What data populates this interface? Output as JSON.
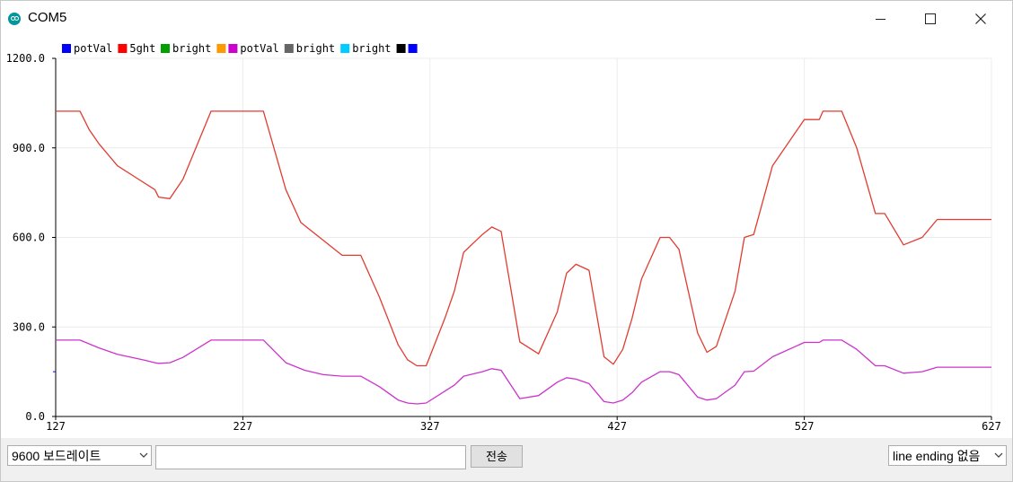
{
  "window": {
    "title": "COM5",
    "app_icon": "arduino-icon",
    "controls": [
      "minimize-icon",
      "maximize-icon",
      "close-icon"
    ]
  },
  "colors": {
    "potVal_red": "#e03c31",
    "bright_magenta": "#cc33cc",
    "grid": "#ececec",
    "axis": "#000000"
  },
  "legend": [
    {
      "label": "potVal",
      "color": "#0000ff"
    },
    {
      "label": "5ght",
      "color": "#ff0000"
    },
    {
      "label": "bright",
      "color": "#00a000"
    },
    {
      "label": "",
      "color": "#ff9900"
    },
    {
      "label": "potVal",
      "color": "#cc00cc"
    },
    {
      "label": "bright",
      "color": "#666666"
    },
    {
      "label": "bright",
      "color": "#00ccff"
    },
    {
      "label": "",
      "color": "#000000"
    },
    {
      "label": "",
      "color": "#0000ff"
    }
  ],
  "chart_data": {
    "type": "line",
    "ylim": [
      0,
      1200
    ],
    "xlim": [
      127,
      627
    ],
    "y_ticks": [
      "0.0",
      "300.0",
      "600.0",
      "900.0",
      "1200.0"
    ],
    "x_ticks": [
      "127",
      "227",
      "327",
      "427",
      "527",
      "627"
    ],
    "grid": true,
    "series": [
      {
        "name": "5ght",
        "color": "#e03c31",
        "x": [
          127,
          140,
          145,
          150,
          160,
          170,
          180,
          182,
          188,
          195,
          210,
          217,
          225,
          238,
          250,
          258,
          270,
          280,
          290,
          300,
          310,
          315,
          320,
          325,
          335,
          340,
          345,
          355,
          360,
          365,
          375,
          385,
          395,
          400,
          405,
          412,
          420,
          425,
          430,
          435,
          440,
          450,
          455,
          460,
          470,
          475,
          480,
          490,
          495,
          500,
          510,
          527,
          533,
          535,
          537,
          543,
          547,
          555,
          565,
          570,
          580,
          590,
          598,
          605,
          627
        ],
        "y": [
          1023,
          1023,
          960,
          915,
          840,
          800,
          760,
          735,
          730,
          795,
          1023,
          1023,
          1023,
          1023,
          760,
          650,
          590,
          540,
          540,
          400,
          240,
          190,
          170,
          170,
          330,
          420,
          550,
          610,
          635,
          620,
          250,
          210,
          350,
          480,
          510,
          490,
          200,
          175,
          225,
          330,
          460,
          600,
          600,
          560,
          280,
          215,
          235,
          420,
          600,
          610,
          840,
          995,
          995,
          995,
          1023,
          1023,
          1023,
          900,
          680,
          680,
          575,
          600,
          660,
          660,
          660
        ]
      },
      {
        "name": "potVal",
        "color": "#cc33cc",
        "x": [
          127,
          140,
          150,
          160,
          170,
          175,
          180,
          182,
          188,
          195,
          210,
          217,
          225,
          238,
          250,
          260,
          270,
          280,
          290,
          300,
          310,
          315,
          320,
          325,
          335,
          340,
          345,
          355,
          360,
          365,
          375,
          385,
          395,
          400,
          405,
          412,
          420,
          425,
          430,
          435,
          440,
          450,
          455,
          460,
          470,
          475,
          480,
          490,
          495,
          500,
          510,
          527,
          533,
          535,
          537,
          543,
          547,
          555,
          565,
          570,
          580,
          590,
          598,
          605,
          627
        ],
        "y": [
          256,
          256,
          230,
          208,
          195,
          188,
          180,
          178,
          180,
          198,
          256,
          256,
          256,
          256,
          180,
          155,
          140,
          135,
          135,
          100,
          55,
          45,
          42,
          45,
          85,
          105,
          135,
          150,
          160,
          155,
          60,
          70,
          115,
          130,
          125,
          110,
          50,
          45,
          55,
          80,
          115,
          150,
          150,
          140,
          65,
          55,
          60,
          105,
          150,
          152,
          200,
          248,
          248,
          248,
          256,
          256,
          256,
          225,
          170,
          170,
          145,
          150,
          165,
          165,
          165
        ]
      }
    ]
  },
  "bottom": {
    "baud_selected": "9600 보드레이트",
    "send_input_value": "",
    "send_button_label": "전송",
    "line_ending_selected": "line ending 없음"
  }
}
